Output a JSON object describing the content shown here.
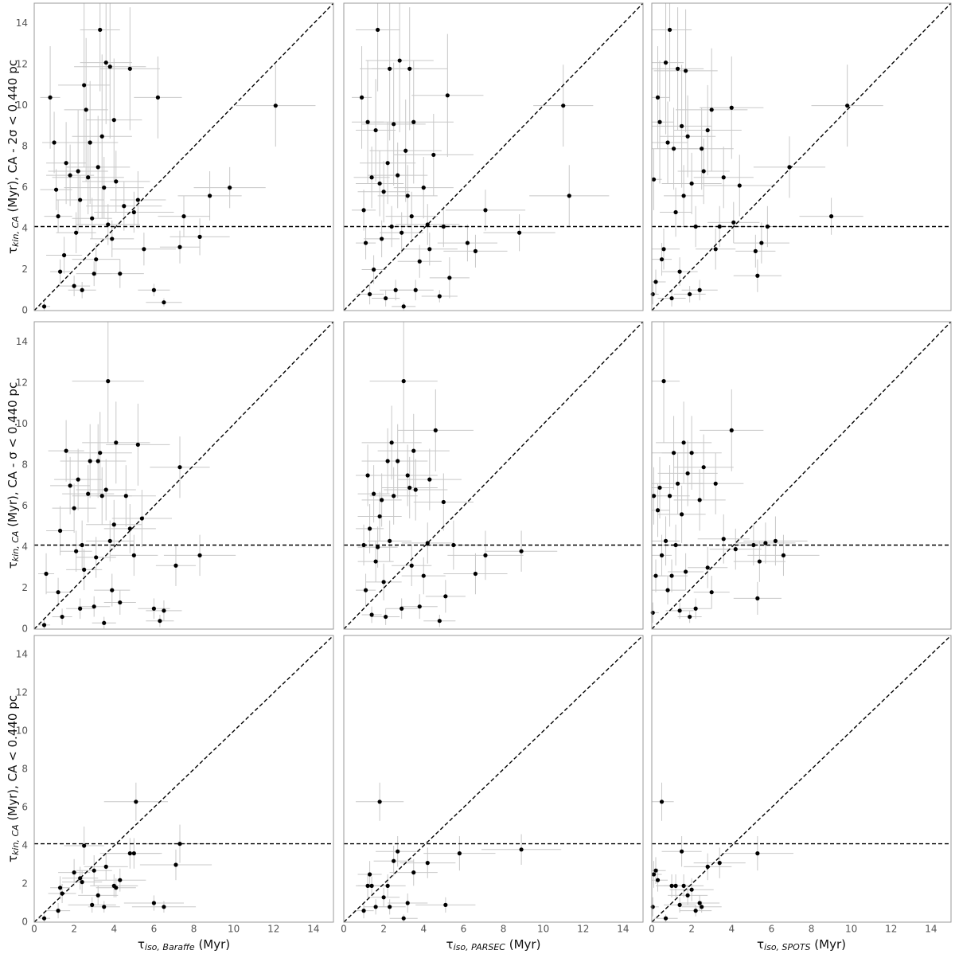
{
  "chart_data": [
    {
      "type": "scatter",
      "color": "#000000",
      "err_color": "#c8c8c8",
      "xlim": [
        0,
        15
      ],
      "ylim": [
        0,
        15
      ],
      "hline": 4.1,
      "diagonal": true,
      "yticks": [
        0,
        2,
        4,
        6,
        8,
        10,
        12,
        14
      ],
      "ylabel": {
        "symbol": "τ",
        "sub": "kin, CA",
        "text": " (Myr), CA - 2σ < 0.440 pc"
      },
      "x": [
        0.5,
        0.8,
        1.0,
        1.1,
        1.2,
        1.3,
        1.5,
        1.6,
        1.8,
        2.0,
        2.1,
        2.2,
        2.3,
        2.4,
        2.5,
        2.6,
        2.7,
        2.8,
        2.9,
        3.0,
        3.1,
        3.2,
        3.3,
        3.4,
        3.5,
        3.6,
        3.7,
        3.8,
        3.9,
        4.0,
        4.1,
        4.3,
        4.5,
        4.8,
        5.0,
        5.2,
        5.5,
        6.0,
        6.2,
        6.5,
        7.3,
        7.5,
        8.3,
        8.8,
        9.8,
        12.1
      ],
      "y": [
        0.2,
        10.4,
        8.2,
        5.9,
        4.6,
        1.9,
        2.7,
        7.2,
        6.6,
        1.2,
        3.8,
        6.8,
        5.4,
        1.0,
        11.0,
        9.8,
        6.5,
        8.2,
        4.5,
        1.8,
        2.5,
        7.0,
        13.7,
        8.5,
        6.0,
        12.1,
        4.2,
        11.9,
        3.5,
        9.3,
        6.3,
        1.8,
        5.1,
        11.8,
        4.8,
        5.4,
        3.0,
        1.0,
        10.4,
        0.4,
        3.1,
        4.6,
        3.6,
        5.6,
        6.0,
        10.0
      ],
      "xerr": [
        0.3,
        0.5,
        0.6,
        0.8,
        0.7,
        0.5,
        0.9,
        1.0,
        1.2,
        0.8,
        1.0,
        1.5,
        1.2,
        0.7,
        1.3,
        1.1,
        1.8,
        1.4,
        1.0,
        0.9,
        1.2,
        1.6,
        1.0,
        1.5,
        2.0,
        1.3,
        1.6,
        1.8,
        1.1,
        1.4,
        1.7,
        1.2,
        1.9,
        1.5,
        2.0,
        1.4,
        1.6,
        0.8,
        1.2,
        0.9,
        1.0,
        1.3,
        1.5,
        1.6,
        1.8,
        2.0
      ],
      "yerr": [
        0.3,
        2.5,
        1.5,
        1.0,
        0.8,
        0.6,
        0.9,
        2.0,
        1.5,
        0.5,
        1.0,
        3.0,
        1.2,
        0.4,
        4.0,
        3.5,
        1.8,
        3.0,
        1.0,
        0.6,
        0.8,
        2.5,
        3.0,
        4.0,
        1.5,
        3.0,
        1.0,
        3.5,
        0.9,
        3.0,
        1.5,
        0.7,
        1.2,
        3.0,
        1.0,
        1.4,
        0.8,
        0.3,
        2.0,
        0.2,
        0.8,
        1.0,
        0.9,
        1.2,
        1.0,
        2.0
      ]
    },
    {
      "type": "scatter",
      "color": "#000000",
      "err_color": "#c8c8c8",
      "xlim": [
        0,
        15
      ],
      "ylim": [
        0,
        15
      ],
      "hline": 4.1,
      "diagonal": true,
      "x": [
        0.9,
        1.0,
        1.1,
        1.2,
        1.3,
        1.4,
        1.5,
        1.6,
        1.7,
        1.8,
        1.9,
        2.0,
        2.1,
        2.2,
        2.3,
        2.4,
        2.5,
        2.6,
        2.7,
        2.8,
        2.9,
        3.0,
        3.1,
        3.2,
        3.3,
        3.4,
        3.5,
        3.6,
        3.8,
        4.0,
        4.2,
        4.3,
        4.5,
        4.8,
        5.0,
        5.2,
        5.3,
        6.2,
        6.6,
        7.1,
        8.8,
        11.0,
        11.3
      ],
      "y": [
        10.4,
        4.9,
        3.3,
        9.2,
        0.8,
        6.5,
        2.0,
        8.8,
        13.7,
        6.2,
        3.5,
        5.8,
        0.6,
        7.2,
        11.8,
        4.1,
        9.1,
        1.0,
        6.6,
        12.2,
        3.8,
        0.2,
        7.8,
        5.6,
        11.8,
        4.6,
        9.2,
        1.0,
        2.4,
        6.0,
        4.2,
        3.0,
        7.6,
        0.7,
        4.1,
        10.5,
        1.6,
        3.3,
        2.9,
        4.9,
        3.8,
        10.0,
        5.6
      ],
      "xerr": [
        0.5,
        0.6,
        0.5,
        0.8,
        0.7,
        0.9,
        0.6,
        1.0,
        1.1,
        1.2,
        0.9,
        1.3,
        0.7,
        1.4,
        1.5,
        1.0,
        1.6,
        0.8,
        1.5,
        1.7,
        1.1,
        0.6,
        1.8,
        1.5,
        1.9,
        1.3,
        2.0,
        0.9,
        1.1,
        1.5,
        1.6,
        1.4,
        2.0,
        0.9,
        1.3,
        1.8,
        1.0,
        1.5,
        1.6,
        2.0,
        1.8,
        1.5,
        2.0
      ],
      "yerr": [
        2.5,
        1.0,
        0.8,
        3.0,
        0.5,
        1.5,
        0.7,
        2.5,
        3.0,
        1.6,
        0.9,
        1.5,
        0.4,
        2.0,
        3.5,
        1.0,
        3.0,
        0.5,
        1.6,
        3.5,
        1.0,
        0.2,
        2.5,
        1.5,
        3.0,
        1.2,
        3.0,
        0.5,
        0.8,
        1.5,
        1.0,
        0.8,
        2.0,
        0.3,
        1.0,
        3.0,
        1.0,
        0.9,
        0.8,
        1.0,
        0.9,
        2.0,
        1.5
      ]
    },
    {
      "type": "scatter",
      "color": "#000000",
      "err_color": "#c8c8c8",
      "xlim": [
        0,
        15
      ],
      "ylim": [
        0,
        15
      ],
      "hline": 4.1,
      "diagonal": true,
      "x": [
        0.05,
        0.1,
        0.2,
        0.3,
        0.4,
        0.5,
        0.6,
        0.7,
        0.8,
        0.9,
        1.0,
        1.1,
        1.2,
        1.3,
        1.4,
        1.5,
        1.6,
        1.7,
        1.8,
        1.9,
        2.0,
        2.2,
        2.4,
        2.5,
        2.6,
        2.8,
        3.0,
        3.2,
        3.4,
        3.6,
        4.0,
        4.1,
        4.4,
        5.2,
        5.3,
        5.5,
        5.8,
        6.9,
        9.0,
        9.8
      ],
      "y": [
        0.8,
        6.4,
        1.4,
        10.4,
        9.2,
        2.5,
        3.0,
        12.1,
        8.2,
        13.7,
        0.6,
        7.9,
        4.8,
        11.8,
        1.9,
        9.0,
        5.6,
        11.7,
        8.5,
        0.8,
        6.2,
        4.1,
        1.0,
        7.9,
        6.8,
        8.8,
        9.8,
        3.0,
        4.1,
        6.5,
        9.9,
        4.3,
        6.1,
        2.9,
        1.7,
        3.3,
        4.1,
        7.0,
        4.6,
        10.0
      ],
      "xerr": [
        0.3,
        0.4,
        0.5,
        0.6,
        0.7,
        0.5,
        0.8,
        0.9,
        1.0,
        1.1,
        0.7,
        1.2,
        0.8,
        1.3,
        0.9,
        1.5,
        1.0,
        1.6,
        1.4,
        0.8,
        1.5,
        1.2,
        0.9,
        1.6,
        1.3,
        1.7,
        1.8,
        1.0,
        1.2,
        1.5,
        1.6,
        1.3,
        1.8,
        1.0,
        1.2,
        1.4,
        1.5,
        1.8,
        1.6,
        1.8
      ],
      "yerr": [
        0.5,
        1.5,
        0.6,
        2.5,
        3.0,
        0.8,
        1.0,
        3.5,
        2.0,
        3.5,
        0.4,
        2.0,
        1.2,
        3.0,
        0.7,
        3.0,
        1.5,
        3.0,
        2.0,
        0.4,
        1.5,
        1.0,
        0.5,
        2.0,
        1.6,
        2.2,
        3.0,
        1.0,
        1.0,
        1.5,
        2.5,
        1.0,
        1.5,
        0.8,
        0.8,
        1.0,
        1.0,
        1.5,
        0.9,
        2.0
      ]
    },
    {
      "type": "scatter",
      "color": "#000000",
      "err_color": "#c8c8c8",
      "xlim": [
        0,
        15
      ],
      "ylim": [
        0,
        15
      ],
      "hline": 4.1,
      "diagonal": true,
      "yticks": [
        0,
        2,
        4,
        6,
        8,
        10,
        12,
        14
      ],
      "ylabel": {
        "symbol": "τ",
        "sub": "kin, CA",
        "text": " (Myr), CA - σ < 0.440 pc"
      },
      "x": [
        0.5,
        0.6,
        1.2,
        1.3,
        1.4,
        1.6,
        1.8,
        2.0,
        2.1,
        2.2,
        2.3,
        2.4,
        2.5,
        2.7,
        2.8,
        3.0,
        3.1,
        3.2,
        3.3,
        3.4,
        3.5,
        3.6,
        3.7,
        3.8,
        3.9,
        4.0,
        4.1,
        4.3,
        4.6,
        4.8,
        5.0,
        5.2,
        5.4,
        6.0,
        6.3,
        6.5,
        7.1,
        7.3,
        8.3
      ],
      "y": [
        0.2,
        2.7,
        1.8,
        4.8,
        0.6,
        8.7,
        7.0,
        5.9,
        3.8,
        7.3,
        1.0,
        4.1,
        2.9,
        6.6,
        8.2,
        1.1,
        3.5,
        8.2,
        8.6,
        6.5,
        0.3,
        6.8,
        12.1,
        4.3,
        1.9,
        5.1,
        9.1,
        1.3,
        6.5,
        4.9,
        3.6,
        9.0,
        5.4,
        1.0,
        0.4,
        0.9,
        3.1,
        7.9,
        3.6
      ],
      "xerr": [
        0.3,
        0.4,
        0.6,
        0.7,
        0.5,
        0.9,
        1.0,
        1.1,
        0.8,
        1.2,
        0.7,
        1.0,
        0.9,
        1.3,
        1.5,
        0.8,
        1.0,
        1.4,
        1.6,
        1.5,
        0.6,
        1.5,
        1.8,
        1.2,
        0.9,
        1.4,
        1.7,
        0.8,
        1.5,
        1.3,
        1.2,
        1.6,
        1.5,
        0.8,
        0.7,
        0.9,
        1.0,
        1.5,
        1.8
      ],
      "yerr": [
        0.3,
        1.0,
        0.7,
        1.2,
        0.4,
        1.5,
        1.4,
        1.2,
        1.0,
        1.5,
        0.5,
        1.2,
        1.0,
        1.4,
        1.8,
        0.5,
        1.0,
        1.8,
        2.0,
        1.4,
        0.3,
        1.5,
        3.0,
        1.0,
        0.8,
        1.2,
        2.0,
        0.6,
        1.5,
        1.2,
        1.0,
        2.0,
        1.4,
        0.5,
        0.3,
        0.5,
        1.0,
        1.5,
        1.0
      ]
    },
    {
      "type": "scatter",
      "color": "#000000",
      "err_color": "#c8c8c8",
      "xlim": [
        0,
        15
      ],
      "ylim": [
        0,
        15
      ],
      "hline": 4.1,
      "diagonal": true,
      "x": [
        1.0,
        1.1,
        1.2,
        1.3,
        1.4,
        1.5,
        1.6,
        1.7,
        1.8,
        1.9,
        2.0,
        2.1,
        2.2,
        2.3,
        2.4,
        2.5,
        2.7,
        2.9,
        3.0,
        3.2,
        3.3,
        3.4,
        3.5,
        3.6,
        3.8,
        4.0,
        4.2,
        4.3,
        4.6,
        4.8,
        5.0,
        5.1,
        5.5,
        6.6,
        7.1,
        8.9
      ],
      "y": [
        4.1,
        1.9,
        7.5,
        4.9,
        0.7,
        6.6,
        3.3,
        4.0,
        5.5,
        6.3,
        2.3,
        0.6,
        8.2,
        4.3,
        9.1,
        6.5,
        8.2,
        1.0,
        12.1,
        7.5,
        6.9,
        3.1,
        8.7,
        6.8,
        1.1,
        2.6,
        4.2,
        7.3,
        9.7,
        0.4,
        6.2,
        1.6,
        4.1,
        2.7,
        3.6,
        3.8
      ],
      "xerr": [
        0.4,
        0.5,
        0.6,
        0.7,
        0.5,
        0.8,
        0.9,
        1.0,
        1.1,
        1.0,
        0.9,
        0.7,
        1.3,
        1.1,
        1.5,
        1.2,
        1.5,
        0.8,
        1.7,
        1.5,
        1.4,
        1.0,
        1.8,
        1.6,
        0.9,
        1.1,
        1.3,
        1.6,
        1.9,
        0.8,
        1.5,
        1.0,
        1.5,
        1.6,
        1.9,
        1.8
      ],
      "yerr": [
        1.0,
        0.8,
        1.5,
        1.2,
        0.4,
        1.4,
        1.0,
        1.0,
        1.2,
        1.3,
        0.9,
        0.4,
        1.6,
        1.0,
        1.8,
        1.4,
        1.8,
        0.5,
        3.0,
        1.5,
        1.5,
        1.0,
        1.8,
        1.5,
        0.6,
        0.9,
        1.0,
        1.5,
        2.0,
        0.3,
        1.4,
        0.8,
        1.2,
        1.0,
        1.2,
        1.0
      ]
    },
    {
      "type": "scatter",
      "color": "#000000",
      "err_color": "#c8c8c8",
      "xlim": [
        0,
        15
      ],
      "ylim": [
        0,
        15
      ],
      "hline": 4.1,
      "diagonal": true,
      "x": [
        0.05,
        0.1,
        0.2,
        0.3,
        0.4,
        0.5,
        0.6,
        0.7,
        0.8,
        0.9,
        1.0,
        1.1,
        1.2,
        1.3,
        1.4,
        1.5,
        1.6,
        1.7,
        1.8,
        1.9,
        2.0,
        2.2,
        2.4,
        2.6,
        2.8,
        3.0,
        3.2,
        3.6,
        4.0,
        4.2,
        5.1,
        5.3,
        5.4,
        5.7,
        6.2,
        6.6
      ],
      "y": [
        0.8,
        6.5,
        2.6,
        5.8,
        6.9,
        3.6,
        12.1,
        4.3,
        1.9,
        6.5,
        2.6,
        8.6,
        4.1,
        7.1,
        0.9,
        5.6,
        9.1,
        2.8,
        7.6,
        0.6,
        8.6,
        1.0,
        6.3,
        7.9,
        3.0,
        1.8,
        7.1,
        4.4,
        9.7,
        3.9,
        4.1,
        1.5,
        3.3,
        4.2,
        4.3,
        3.6
      ],
      "xerr": [
        0.3,
        0.4,
        0.5,
        0.6,
        0.7,
        0.5,
        0.8,
        0.7,
        0.9,
        1.0,
        0.8,
        1.2,
        0.9,
        1.3,
        0.7,
        1.2,
        1.4,
        0.9,
        1.5,
        0.6,
        1.5,
        0.8,
        1.3,
        1.5,
        1.0,
        0.9,
        1.4,
        1.3,
        1.6,
        1.3,
        1.0,
        1.2,
        1.3,
        1.5,
        1.6,
        1.8
      ],
      "yerr": [
        0.5,
        1.4,
        0.8,
        1.3,
        1.5,
        1.0,
        3.0,
        1.2,
        0.7,
        1.5,
        0.8,
        1.8,
        1.0,
        1.5,
        0.4,
        1.4,
        2.0,
        0.9,
        1.6,
        0.3,
        1.8,
        0.5,
        1.5,
        1.6,
        1.0,
        0.8,
        1.5,
        1.2,
        2.0,
        1.0,
        1.0,
        0.8,
        1.0,
        1.0,
        1.2,
        1.0
      ]
    },
    {
      "type": "scatter",
      "color": "#000000",
      "err_color": "#c8c8c8",
      "xlim": [
        0,
        15
      ],
      "ylim": [
        0,
        15
      ],
      "hline": 4.1,
      "diagonal": true,
      "yticks": [
        0,
        2,
        4,
        6,
        8,
        10,
        12,
        14
      ],
      "xticks": [
        0,
        2,
        4,
        6,
        8,
        10,
        12,
        14
      ],
      "ylabel": {
        "symbol": "τ",
        "sub": "kin, CA",
        "text": " (Myr), CA < 0.440 pc"
      },
      "xlabel": {
        "symbol": "τ",
        "sub": "iso, Baraffe",
        "text": " (Myr)"
      },
      "x": [
        0.5,
        1.2,
        1.3,
        1.4,
        2.0,
        2.3,
        2.4,
        2.5,
        2.9,
        3.0,
        3.2,
        3.5,
        3.6,
        4.0,
        4.1,
        4.3,
        4.8,
        5.0,
        5.1,
        6.0,
        6.5,
        7.1,
        7.3
      ],
      "y": [
        0.2,
        0.6,
        1.8,
        1.5,
        2.6,
        2.3,
        2.1,
        4.0,
        0.9,
        2.7,
        1.4,
        0.8,
        2.9,
        1.9,
        1.8,
        2.2,
        3.6,
        3.6,
        6.3,
        1.0,
        0.8,
        3.0,
        4.1
      ],
      "xerr": [
        0.3,
        0.6,
        0.5,
        0.7,
        0.8,
        0.9,
        1.0,
        1.0,
        1.2,
        0.9,
        1.0,
        0.8,
        1.1,
        1.2,
        1.0,
        1.3,
        1.5,
        1.4,
        1.6,
        1.5,
        1.6,
        1.8,
        1.9
      ],
      "yerr": [
        0.2,
        0.4,
        0.6,
        0.5,
        0.7,
        0.6,
        0.6,
        1.0,
        0.4,
        0.8,
        0.5,
        0.3,
        0.7,
        0.6,
        0.5,
        0.6,
        0.8,
        0.8,
        1.0,
        0.4,
        0.3,
        0.8,
        1.0
      ]
    },
    {
      "type": "scatter",
      "color": "#000000",
      "err_color": "#c8c8c8",
      "xlim": [
        0,
        15
      ],
      "ylim": [
        0,
        15
      ],
      "hline": 4.1,
      "diagonal": true,
      "xticks": [
        0,
        2,
        4,
        6,
        8,
        10,
        12,
        14
      ],
      "xlabel": {
        "symbol": "τ",
        "sub": "iso, PARSEC",
        "text": " (Myr)"
      },
      "x": [
        1.0,
        1.2,
        1.3,
        1.4,
        1.6,
        1.8,
        2.0,
        2.2,
        2.3,
        2.5,
        2.7,
        3.0,
        3.2,
        3.5,
        4.2,
        5.1,
        5.8,
        8.9
      ],
      "y": [
        0.6,
        1.9,
        2.5,
        1.9,
        0.8,
        6.3,
        1.3,
        1.9,
        0.8,
        3.2,
        3.7,
        0.2,
        1.0,
        2.6,
        3.1,
        0.9,
        3.6,
        3.8
      ],
      "xerr": [
        0.5,
        0.6,
        0.6,
        0.7,
        0.6,
        1.2,
        0.8,
        0.9,
        0.8,
        1.0,
        1.1,
        0.7,
        1.0,
        1.2,
        1.4,
        1.5,
        1.8,
        2.0
      ],
      "yerr": [
        0.4,
        0.6,
        0.7,
        0.5,
        0.4,
        1.0,
        0.5,
        0.6,
        0.4,
        0.8,
        0.8,
        0.2,
        0.5,
        0.7,
        0.8,
        0.4,
        0.9,
        0.8
      ]
    },
    {
      "type": "scatter",
      "color": "#000000",
      "err_color": "#c8c8c8",
      "xlim": [
        0,
        15
      ],
      "ylim": [
        0,
        15
      ],
      "hline": 4.1,
      "diagonal": true,
      "xticks": [
        0,
        2,
        4,
        6,
        8,
        10,
        12,
        14
      ],
      "xlabel": {
        "symbol": "τ",
        "sub": "iso, SPOTS",
        "text": " (Myr)"
      },
      "x": [
        0.05,
        0.1,
        0.2,
        0.3,
        0.5,
        0.7,
        1.0,
        1.2,
        1.4,
        1.5,
        1.6,
        1.8,
        2.0,
        2.2,
        2.4,
        2.5,
        2.8,
        3.4,
        5.3
      ],
      "y": [
        0.8,
        2.5,
        2.7,
        2.2,
        6.3,
        0.2,
        1.9,
        1.9,
        0.9,
        3.7,
        1.9,
        1.4,
        1.7,
        0.6,
        1.0,
        0.8,
        2.9,
        3.1,
        3.6
      ],
      "xerr": [
        0.3,
        0.4,
        0.5,
        0.5,
        0.6,
        0.6,
        0.8,
        0.9,
        0.8,
        1.0,
        1.0,
        1.0,
        1.1,
        0.8,
        1.0,
        1.0,
        1.2,
        1.3,
        1.8
      ],
      "yerr": [
        0.5,
        0.7,
        0.7,
        0.6,
        1.0,
        0.2,
        0.6,
        0.6,
        0.4,
        0.8,
        0.6,
        0.5,
        0.6,
        0.3,
        0.4,
        0.3,
        0.7,
        0.8,
        0.9
      ]
    }
  ]
}
